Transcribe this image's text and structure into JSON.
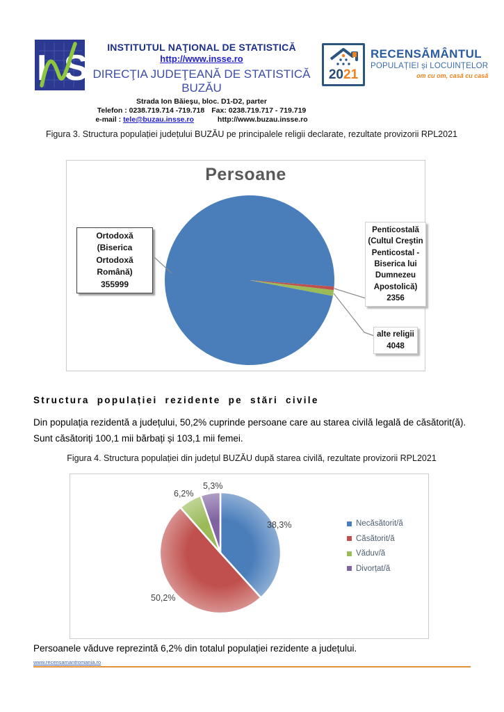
{
  "header": {
    "ins_logo_text": "INS",
    "institute": "INSTITUTUL NAŢIONAL DE STATISTICĂ",
    "website": "http://www.insse.ro",
    "directorate": "DIRECŢIA JUDEŢEANĂ DE STATISTICĂ BUZĂU",
    "address": "Strada Ion Băieşu, bloc. D1-D2, parter",
    "telefon": "Telefon : 0238.719.714 -719.718",
    "fax": "Fax: 0238.719.717 - 719.719",
    "email_label": "e-mail : ",
    "email": "tele@buzau.insse.ro",
    "website2": "http://www.buzau.insse.ro",
    "rpl_logo": {
      "year_20": "20",
      "year_21": "21",
      "title": "RECENSĂMÂNTUL",
      "subtitle": "POPULAȚIEI și LOCUINȚELOR",
      "tagline": "om cu om, casă cu casă"
    }
  },
  "figure3": {
    "caption": "Figura 3. Structura populației județului BUZĂU pe principalele religii declarate, rezultate provizorii RPL2021"
  },
  "section": {
    "heading": "Structura populației rezidente pe stări civile",
    "para_line1": "Din populația rezidentă a județului,  50,2% cuprinde persoane care au starea civilă legală de căsătorit(ă).",
    "para_line2": "Sunt căsătoriți 100,1 mii bărbați și 103,1 mii femei."
  },
  "figure4": {
    "caption": "Figura 4. Structura populației din județul BUZĂU după starea civilă, rezultate provizorii RPL2021"
  },
  "footer": {
    "text": "Persoanele văduve reprezintă 6,2% din totalul populației rezidente a județului.",
    "link": "www.recensamantromania.ro"
  },
  "chart_data": [
    {
      "type": "pie",
      "title": "Persoane",
      "start_angle": 100.7,
      "legend_position": "none",
      "slices": [
        {
          "label": "Ortodoxă (Biserica Ortodoxă Română)",
          "value": 355999,
          "color": "#4a7ebb"
        },
        {
          "label": "Penticostală (Cultul Creştin Penticostal - Biserica lui Dumnezeu Apostolică)",
          "value": 2356,
          "color": "#c0504d"
        },
        {
          "label": "alte religii",
          "value": 4048,
          "color": "#9bbb59"
        }
      ]
    },
    {
      "type": "pie",
      "title": "",
      "start_angle": 0,
      "legend_position": "right",
      "slices": [
        {
          "label": "Necăsătorit/ă",
          "value": 38.3,
          "pct_label": "38,3%",
          "color": "#4a7ebb"
        },
        {
          "label": "Căsătorit/ă",
          "value": 50.2,
          "pct_label": "50,2%",
          "color": "#c0504d"
        },
        {
          "label": "Văduv/ă",
          "value": 6.2,
          "pct_label": "6,2%",
          "color": "#9bbb59"
        },
        {
          "label": "Divorțat/ă",
          "value": 5.3,
          "pct_label": "5,3%",
          "color": "#8064a2"
        }
      ]
    }
  ]
}
